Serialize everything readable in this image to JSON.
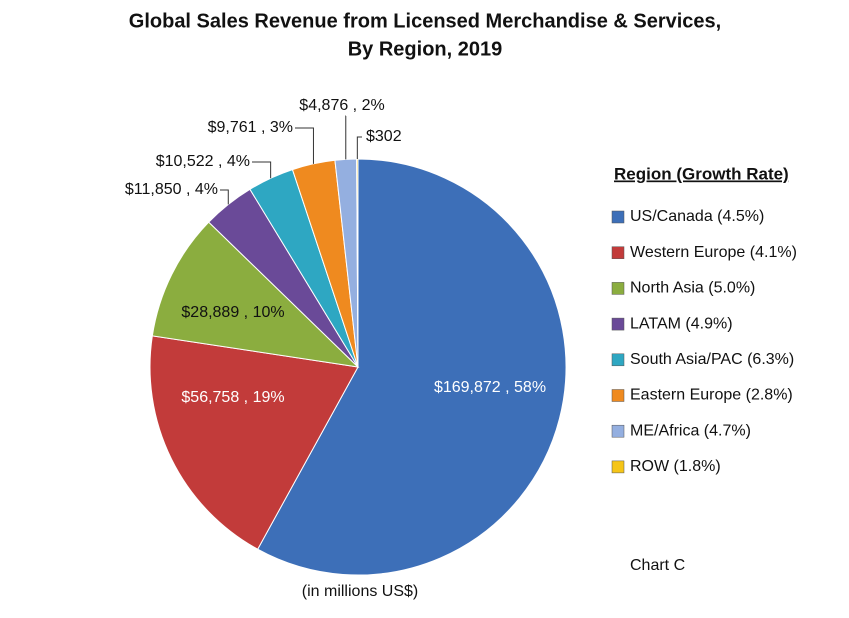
{
  "chart_data": {
    "type": "pie",
    "title": "Global Sales Revenue from Licensed Merchandise & Services,",
    "subtitle": "By Region, 2019",
    "legend_title": "Region (Growth Rate)",
    "note": "(in millions US$)",
    "chart_label": "Chart C",
    "legend": "right",
    "categories": [
      "US/Canada (4.5%)",
      "Western Europe (4.1%)",
      "North Asia (5.0%)",
      "LATAM (4.9%)",
      "South Asia/PAC (6.3%)",
      "Eastern Europe (2.8%)",
      "ME/Africa (4.7%)",
      "ROW (1.8%)"
    ],
    "values": [
      169872,
      56758,
      28889,
      11850,
      10522,
      9761,
      4876,
      302
    ],
    "value_labels": [
      "$169,872 , 58%",
      "$56,758 , 19%",
      "$28,889 , 10%",
      "$11,850 , 4%",
      "$10,522 , 4%",
      "$9,761 , 3%",
      "$4,876 , 2%",
      "$302"
    ],
    "colors": [
      "#3d6fb8",
      "#c23b3a",
      "#8bad3f",
      "#6a4a98",
      "#2ea7c2",
      "#ef8a1f",
      "#94afe0",
      "#f5c518"
    ]
  }
}
